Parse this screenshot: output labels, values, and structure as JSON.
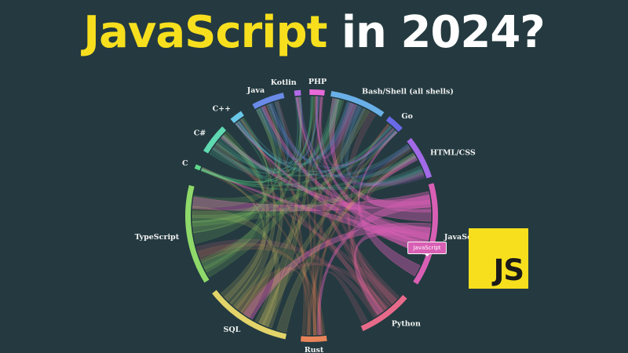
{
  "headline": {
    "accent": "JavaScript",
    "rest": "in 2024?"
  },
  "badge": {
    "text": "JS"
  },
  "tooltip": {
    "text": "JavaScript"
  },
  "diagram": {
    "type": "chord",
    "highlighted": "JavaScript",
    "segments": [
      {
        "id": "javascript",
        "label": "JavaScript",
        "color": "#d95fb4"
      },
      {
        "id": "python",
        "label": "Python",
        "color": "#e86a8a"
      },
      {
        "id": "rust",
        "label": "Rust",
        "color": "#e8845a"
      },
      {
        "id": "sql",
        "label": "SQL",
        "color": "#e3d46a"
      },
      {
        "id": "typescript",
        "label": "TypeScript",
        "color": "#8fd96a"
      },
      {
        "id": "c",
        "label": "C",
        "color": "#5fd98a"
      },
      {
        "id": "csharp",
        "label": "C#",
        "color": "#5fd9b0"
      },
      {
        "id": "cpp",
        "label": "C++",
        "color": "#6ac7e8"
      },
      {
        "id": "java",
        "label": "Java",
        "color": "#6a8ae8"
      },
      {
        "id": "kotlin",
        "label": "Kotlin",
        "color": "#b06ae8"
      },
      {
        "id": "php",
        "label": "PHP",
        "color": "#e86ad9"
      },
      {
        "id": "bash",
        "label": "Bash/Shell (all shells)",
        "color": "#6ab0e8"
      },
      {
        "id": "go",
        "label": "Go",
        "color": "#6a6ae8"
      },
      {
        "id": "htmlcss",
        "label": "HTML/CSS",
        "color": "#a26ae8"
      }
    ]
  }
}
